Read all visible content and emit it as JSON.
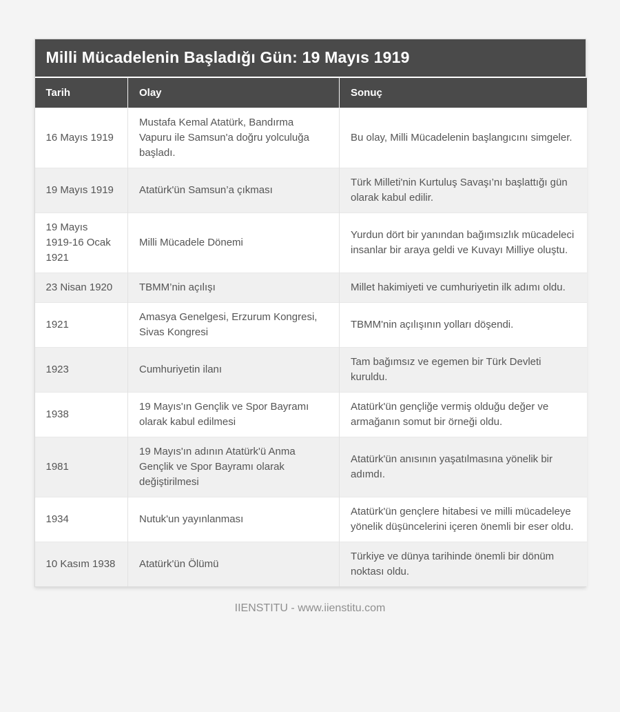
{
  "page": {
    "title": "Milli Mücadelenin Başladığı Gün: 19 Mayıs 1919",
    "footer": "IIENSTITU - www.iienstitu.com"
  },
  "colors": {
    "header_bg": "#4a4a4a",
    "header_text": "#ffffff",
    "row_bg": "#ffffff",
    "row_alt_bg": "#f0f0f0",
    "body_text": "#555555",
    "page_bg": "#f4f4f4",
    "footer_text": "#8f8f8f"
  },
  "table": {
    "columns": [
      "Tarih",
      "Olay",
      "Sonuç"
    ],
    "rows": [
      {
        "tarih": "16 Mayıs 1919",
        "olay": "Mustafa Kemal Atatürk, Bandırma Vapuru ile Samsun'a doğru yolculuğa başladı.",
        "sonuc": "Bu olay, Milli Mücadelenin başlangıcını simgeler."
      },
      {
        "tarih": "19 Mayıs 1919",
        "olay": "Atatürk'ün Samsun’a çıkması",
        "sonuc": "Türk Milleti'nin Kurtuluş Savaşı’nı başlattığı gün olarak kabul edilir."
      },
      {
        "tarih": "19 Mayıs 1919-16 Ocak 1921",
        "olay": "Milli Mücadele Dönemi",
        "sonuc": "Yurdun dört bir yanından bağımsızlık mücadeleci insanlar bir araya geldi ve Kuvayı Milliye oluştu."
      },
      {
        "tarih": "23 Nisan 1920",
        "olay": "TBMM’nin açılışı",
        "sonuc": "Millet hakimiyeti ve cumhuriyetin ilk adımı oldu."
      },
      {
        "tarih": "1921",
        "olay": "Amasya Genelgesi, Erzurum Kongresi, Sivas Kongresi",
        "sonuc": "TBMM'nin açılışının yolları döşendi."
      },
      {
        "tarih": "1923",
        "olay": "Cumhuriyetin ilanı",
        "sonuc": "Tam bağımsız ve egemen bir Türk Devleti kuruldu."
      },
      {
        "tarih": "1938",
        "olay": "19 Mayıs'ın Gençlik ve Spor Bayramı olarak kabul edilmesi",
        "sonuc": "Atatürk'ün gençliğe vermiş olduğu değer ve armağanın somut bir örneği oldu."
      },
      {
        "tarih": "1981",
        "olay": "19 Mayıs'ın adının Atatürk'ü Anma Gençlik ve Spor Bayramı olarak değiştirilmesi",
        "sonuc": "Atatürk'ün anısının yaşatılmasına yönelik bir adımdı."
      },
      {
        "tarih": "1934",
        "olay": "Nutuk'un yayınlanması",
        "sonuc": "Atatürk'ün gençlere hitabesi ve milli mücadeleye yönelik düşüncelerini içeren önemli bir eser oldu."
      },
      {
        "tarih": "10 Kasım 1938",
        "olay": "Atatürk'ün Ölümü",
        "sonuc": "Türkiye ve dünya tarihinde önemli bir dönüm noktası oldu."
      }
    ]
  }
}
